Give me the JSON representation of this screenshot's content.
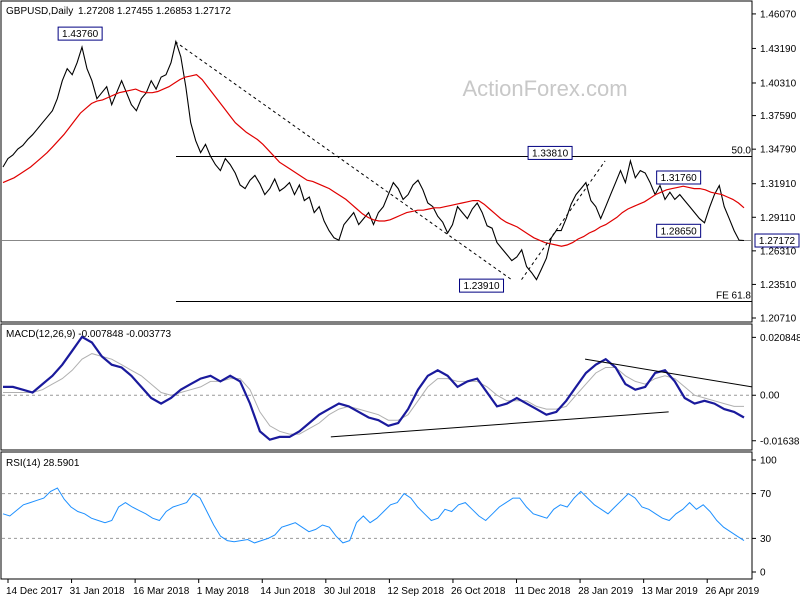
{
  "chart_data": {
    "type": "line",
    "symbol": "GBPUSD,Daily",
    "ohlc_header": "1.27208 1.27455 1.26853 1.27172",
    "watermark": "ActionForex.com",
    "x_labels": [
      "14 Dec 2017",
      "31 Jan 2018",
      "16 Mar 2018",
      "1 May 2018",
      "14 Jun 2018",
      "30 Jul 2018",
      "12 Sep 2018",
      "26 Oct 2018",
      "11 Dec 2018",
      "28 Jan 2019",
      "13 Mar 2019",
      "26 Apr 2019"
    ],
    "price_panel": {
      "ylim": [
        1.2071,
        1.4673
      ],
      "y_ticks": [
        1.4607,
        1.4319,
        1.4031,
        1.3759,
        1.3479,
        1.3191,
        1.2911,
        1.2631,
        1.2351,
        1.2071
      ],
      "y_tick_labels": [
        "1.46070",
        "1.43190",
        "1.40310",
        "1.37590",
        "1.34790",
        "1.31910",
        "1.29110",
        "1.26310",
        "1.23510",
        "1.20710"
      ],
      "current_price": 1.27172,
      "current_price_label": "1.27172",
      "series": [
        {
          "values": [
            1.333,
            1.34,
            1.343,
            1.348,
            1.351,
            1.356,
            1.36,
            1.365,
            1.37,
            1.375,
            1.38,
            1.39,
            1.405,
            1.415,
            1.41,
            1.42,
            1.433,
            1.415,
            1.405,
            1.39,
            1.395,
            1.4,
            1.385,
            1.395,
            1.405,
            1.395,
            1.385,
            1.38,
            1.39,
            1.395,
            1.405,
            1.398,
            1.408,
            1.41,
            1.42,
            1.4376,
            1.425,
            1.4,
            1.37,
            1.355,
            1.345,
            1.352,
            1.342,
            1.335,
            1.33,
            1.34,
            1.335,
            1.328,
            1.318,
            1.315,
            1.322,
            1.326,
            1.319,
            1.31,
            1.315,
            1.323,
            1.313,
            1.316,
            1.32,
            1.31,
            1.318,
            1.305,
            1.308,
            1.295,
            1.3,
            1.288,
            1.28,
            1.274,
            1.272,
            1.285,
            1.29,
            1.295,
            1.285,
            1.29,
            1.295,
            1.285,
            1.295,
            1.3,
            1.31,
            1.32,
            1.315,
            1.306,
            1.31,
            1.318,
            1.322,
            1.314,
            1.303,
            1.3,
            1.292,
            1.287,
            1.278,
            1.285,
            1.3,
            1.295,
            1.29,
            1.298,
            1.303,
            1.295,
            1.284,
            1.282,
            1.27,
            1.265,
            1.26,
            1.255,
            1.258,
            1.264,
            1.25,
            1.245,
            1.2391,
            1.248,
            1.257,
            1.274,
            1.28,
            1.28,
            1.29,
            1.302,
            1.31,
            1.315,
            1.32,
            1.305,
            1.3,
            1.29,
            1.3,
            1.31,
            1.32,
            1.33,
            1.32,
            1.3381,
            1.324,
            1.33,
            1.328,
            1.32,
            1.31,
            1.3176,
            1.306,
            1.312,
            1.306,
            1.31,
            1.305,
            1.3,
            1.295,
            1.29,
            1.2865,
            1.299,
            1.31,
            1.3176,
            1.3,
            1.29,
            1.28,
            1.272,
            1.2717
          ]
        },
        {
          "values": [
            1.32,
            1.322,
            1.324,
            1.327,
            1.33,
            1.333,
            1.337,
            1.341,
            1.345,
            1.35,
            1.355,
            1.36,
            1.366,
            1.372,
            1.378,
            1.382,
            1.386,
            1.388,
            1.389,
            1.391,
            1.393,
            1.395,
            1.396,
            1.397,
            1.398,
            1.396,
            1.395,
            1.395,
            1.396,
            1.398,
            1.4,
            1.403,
            1.406,
            1.408,
            1.409,
            1.41,
            1.406,
            1.4,
            1.394,
            1.388,
            1.382,
            1.376,
            1.37,
            1.366,
            1.362,
            1.359,
            1.356,
            1.352,
            1.347,
            1.342,
            1.337,
            1.334,
            1.331,
            1.328,
            1.325,
            1.322,
            1.321,
            1.319,
            1.317,
            1.315,
            1.312,
            1.309,
            1.306,
            1.302,
            1.298,
            1.294,
            1.291,
            1.289,
            1.288,
            1.288,
            1.289,
            1.291,
            1.293,
            1.295,
            1.296,
            1.297,
            1.297,
            1.298,
            1.299,
            1.299,
            1.3,
            1.301,
            1.302,
            1.303,
            1.304,
            1.305,
            1.305,
            1.302,
            1.298,
            1.294,
            1.29,
            1.287,
            1.285,
            1.283,
            1.28,
            1.277,
            1.274,
            1.272,
            1.27,
            1.269,
            1.268,
            1.267,
            1.268,
            1.27,
            1.273,
            1.275,
            1.278,
            1.28,
            1.283,
            1.285,
            1.288,
            1.291,
            1.295,
            1.298,
            1.3,
            1.302,
            1.304,
            1.307,
            1.31,
            1.312,
            1.314,
            1.315,
            1.316,
            1.317,
            1.316,
            1.315,
            1.315,
            1.314,
            1.312,
            1.311,
            1.31,
            1.308,
            1.306,
            1.303,
            1.299
          ]
        }
      ],
      "annotations": [
        {
          "text": "1.43760",
          "price": 1.4376,
          "x": "16 Mar 2018"
        },
        {
          "text": "1.33810",
          "price": 1.3381,
          "x": "28 Jan 2019"
        },
        {
          "text": "1.31760",
          "price": 1.3176,
          "x": "13 Mar 2019"
        },
        {
          "text": "1.28650",
          "price": 1.2865,
          "x": "13 Mar 2019"
        },
        {
          "text": "1.23910",
          "price": 1.2391,
          "x": "11 Dec 2018"
        },
        {
          "text": "1.27172",
          "price": 1.27172,
          "x": "26 Apr 2019"
        }
      ],
      "level_lines": [
        {
          "label": "50.0",
          "price": 1.3418
        },
        {
          "label": "FE 61.8",
          "price": 1.2209
        }
      ]
    },
    "macd_panel": {
      "label": "MACD(12,26,9) -0.007848 -0.003773",
      "ylim": [
        -0.019,
        0.0235
      ],
      "y_ticks": [
        0.020848,
        0.0,
        -0.016389
      ],
      "y_tick_labels": [
        "0.020848",
        "0.00",
        "-0.016389"
      ],
      "series": [
        {
          "values": [
            0.003,
            0.003,
            0.002,
            0.001,
            0.004,
            0.007,
            0.011,
            0.016,
            0.021,
            0.019,
            0.014,
            0.011,
            0.01,
            0.007,
            0.003,
            -0.001,
            -0.003,
            -0.001,
            0.002,
            0.004,
            0.006,
            0.007,
            0.005,
            0.007,
            0.005,
            -0.003,
            -0.013,
            -0.016,
            -0.015,
            -0.015,
            -0.013,
            -0.01,
            -0.007,
            -0.005,
            -0.003,
            -0.004,
            -0.006,
            -0.008,
            -0.009,
            -0.011,
            -0.01,
            -0.005,
            0.002,
            0.007,
            0.009,
            0.007,
            0.003,
            0.005,
            0.006,
            0.001,
            -0.004,
            -0.003,
            -0.001,
            -0.003,
            -0.005,
            -0.007,
            -0.006,
            -0.002,
            0.003,
            0.008,
            0.011,
            0.013,
            0.01,
            0.004,
            0.002,
            0.003,
            0.008,
            0.009,
            0.005,
            -0.001,
            -0.003,
            -0.002,
            -0.003,
            -0.005,
            -0.006,
            -0.008
          ]
        },
        {
          "values": [
            0.001,
            0.001,
            0.001,
            0.001,
            0.002,
            0.004,
            0.006,
            0.009,
            0.013,
            0.015,
            0.014,
            0.013,
            0.011,
            0.009,
            0.007,
            0.004,
            0.001,
            0.0,
            0.001,
            0.002,
            0.003,
            0.005,
            0.005,
            0.006,
            0.006,
            0.002,
            -0.006,
            -0.011,
            -0.013,
            -0.014,
            -0.014,
            -0.012,
            -0.01,
            -0.007,
            -0.005,
            -0.004,
            -0.005,
            -0.006,
            -0.007,
            -0.009,
            -0.009,
            -0.007,
            -0.002,
            0.003,
            0.006,
            0.006,
            0.005,
            0.005,
            0.005,
            0.003,
            0.0,
            -0.002,
            -0.002,
            -0.002,
            -0.004,
            -0.005,
            -0.005,
            -0.004,
            0.0,
            0.004,
            0.008,
            0.01,
            0.01,
            0.007,
            0.005,
            0.004,
            0.006,
            0.007,
            0.006,
            0.003,
            0.0,
            -0.001,
            -0.002,
            -0.003,
            -0.004,
            -0.004
          ]
        }
      ],
      "trendlines": [
        {
          "from": {
            "x": "30 Jul 2018",
            "value": -0.015
          },
          "to": {
            "x": "13 Mar 2019",
            "value": -0.006
          }
        },
        {
          "from": {
            "x": "28 Jan 2019",
            "value": 0.013
          },
          "to": {
            "x": "26 Apr 2019",
            "value": 0.003
          }
        }
      ]
    },
    "rsi_panel": {
      "label": "RSI(14) 28.5901",
      "ylim": [
        0,
        100
      ],
      "y_ticks": [
        100,
        70,
        30,
        0
      ],
      "levels": [
        70,
        30
      ],
      "series": [
        {
          "values": [
            52,
            50,
            55,
            60,
            62,
            64,
            66,
            72,
            75,
            65,
            58,
            54,
            52,
            48,
            46,
            44,
            46,
            58,
            62,
            58,
            55,
            52,
            48,
            46,
            54,
            58,
            60,
            62,
            70,
            66,
            54,
            42,
            32,
            28,
            27,
            28,
            29,
            26,
            28,
            30,
            33,
            40,
            42,
            44,
            40,
            36,
            38,
            42,
            40,
            32,
            26,
            28,
            44,
            50,
            44,
            48,
            54,
            60,
            62,
            70,
            66,
            58,
            52,
            46,
            48,
            56,
            54,
            60,
            62,
            56,
            50,
            46,
            52,
            58,
            62,
            66,
            66,
            58,
            52,
            50,
            48,
            56,
            60,
            58,
            66,
            72,
            66,
            60,
            56,
            52,
            58,
            64,
            70,
            66,
            58,
            56,
            52,
            48,
            46,
            52,
            56,
            62,
            56,
            60,
            54,
            46,
            40,
            36,
            32,
            28
          ]
        }
      ]
    }
  }
}
